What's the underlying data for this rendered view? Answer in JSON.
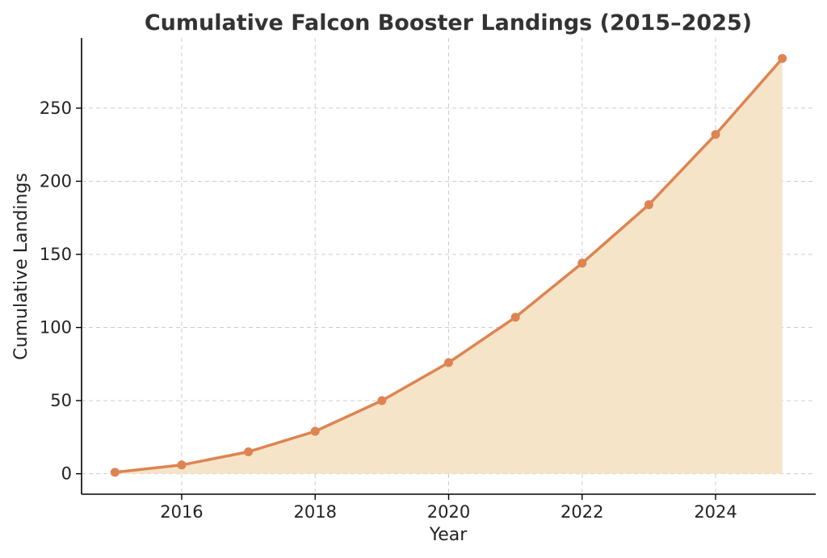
{
  "chart_data": {
    "type": "area",
    "title": "Cumulative Falcon Booster Landings (2015–2025)",
    "xlabel": "Year",
    "ylabel": "Cumulative Landings",
    "xlim": [
      2014.5,
      2025.5
    ],
    "ylim": [
      -14,
      298
    ],
    "x_ticks": [
      2016,
      2018,
      2020,
      2022,
      2024
    ],
    "y_ticks": [
      0,
      50,
      100,
      150,
      200,
      250
    ],
    "grid": true,
    "series": [
      {
        "x": [
          2015,
          2016,
          2017,
          2018,
          2019,
          2020,
          2021,
          2022,
          2023,
          2024,
          2025
        ],
        "values": [
          1,
          6,
          15,
          29,
          50,
          76,
          107,
          144,
          184,
          232,
          284
        ]
      }
    ],
    "colors": {
      "line": "#dd8452",
      "fill": "#f6e4c8"
    }
  }
}
